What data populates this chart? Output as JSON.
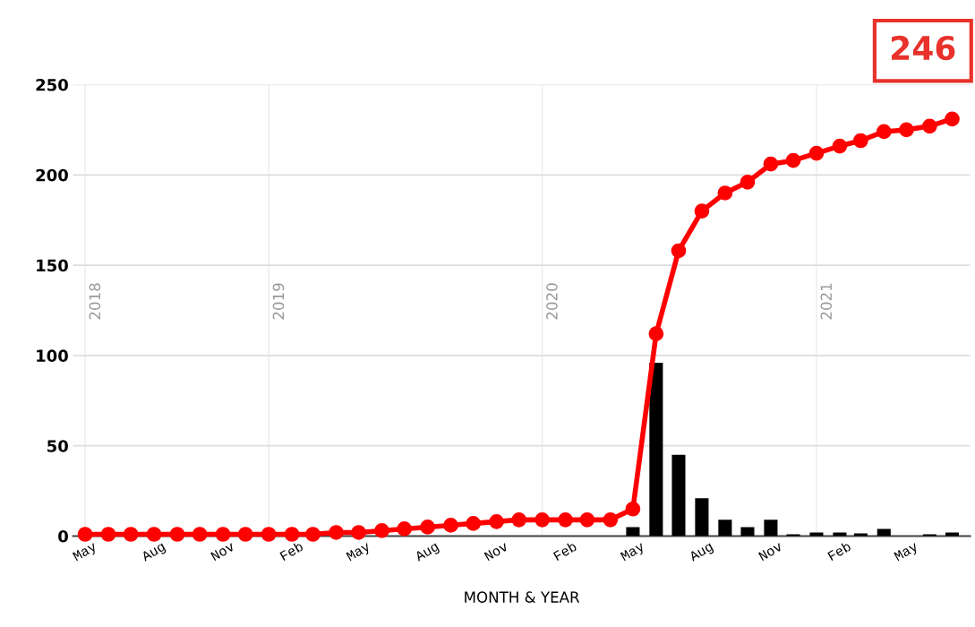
{
  "chart_data": {
    "type": "bar",
    "xlabel": "MONTH & YEAR",
    "x": [
      "2018-05",
      "2018-06",
      "2018-07",
      "2018-08",
      "2018-09",
      "2018-10",
      "2018-11",
      "2018-12",
      "2019-01",
      "2019-02",
      "2019-03",
      "2019-04",
      "2019-05",
      "2019-06",
      "2019-07",
      "2019-08",
      "2019-09",
      "2019-10",
      "2019-11",
      "2019-12",
      "2020-01",
      "2020-02",
      "2020-03",
      "2020-04",
      "2020-05",
      "2020-06",
      "2020-07",
      "2020-08",
      "2020-09",
      "2020-10",
      "2020-11",
      "2020-12",
      "2021-01",
      "2021-02",
      "2021-03",
      "2021-04",
      "2021-05",
      "2021-06",
      "2021-07"
    ],
    "series": [
      {
        "color": "#000000",
        "values": [
          0,
          0,
          0,
          0,
          0,
          0,
          0,
          0,
          0,
          0,
          0,
          0,
          0,
          0,
          0,
          0,
          0,
          0,
          0,
          0,
          0,
          0,
          0,
          0,
          5,
          96,
          45,
          21,
          9,
          5,
          9,
          1,
          2,
          2,
          1.5,
          4,
          0,
          1,
          2
        ]
      },
      {
        "type": "line",
        "color": "#ff0000",
        "marker": "circle",
        "line_style": "solid",
        "values": [
          1,
          1,
          1,
          1,
          1,
          1,
          1,
          1,
          1,
          1,
          1,
          2,
          2,
          3,
          4,
          5,
          6,
          7,
          8,
          9,
          9,
          9,
          9,
          9,
          15,
          112,
          158,
          180,
          190,
          196,
          206,
          208,
          212,
          216,
          219,
          224,
          225,
          227,
          231
        ]
      }
    ],
    "xlim": [
      "2018-04-15",
      "2021-07-25"
    ],
    "xticks": [
      {
        "value": "2018-05",
        "label": "May"
      },
      {
        "value": "2018-08",
        "label": "Aug"
      },
      {
        "value": "2018-11",
        "label": "Nov"
      },
      {
        "value": "2019-02",
        "label": "Feb"
      },
      {
        "value": "2019-05",
        "label": "May"
      },
      {
        "value": "2019-08",
        "label": "Aug"
      },
      {
        "value": "2019-11",
        "label": "Nov"
      },
      {
        "value": "2020-02",
        "label": "Feb"
      },
      {
        "value": "2020-05",
        "label": "May"
      },
      {
        "value": "2020-08",
        "label": "Aug"
      },
      {
        "value": "2020-11",
        "label": "Nov"
      },
      {
        "value": "2021-02",
        "label": "Feb"
      },
      {
        "value": "2021-05",
        "label": "May"
      }
    ],
    "ylim": [
      0,
      250
    ],
    "yticks": [
      0,
      50,
      100,
      150,
      200,
      250
    ],
    "ref_lines": [
      {
        "axis": "x",
        "value": "2018-05",
        "label": "2018",
        "color": "#eeeeee"
      },
      {
        "axis": "x",
        "value": "2019-01",
        "label": "2019",
        "color": "#eeeeee"
      },
      {
        "axis": "x",
        "value": "2020-01",
        "label": "2020",
        "color": "#eeeeee"
      },
      {
        "axis": "x",
        "value": "2021-01",
        "label": "2021",
        "color": "#eeeeee"
      }
    ],
    "annotations": [
      "246"
    ],
    "grid": "y",
    "legend": false
  }
}
